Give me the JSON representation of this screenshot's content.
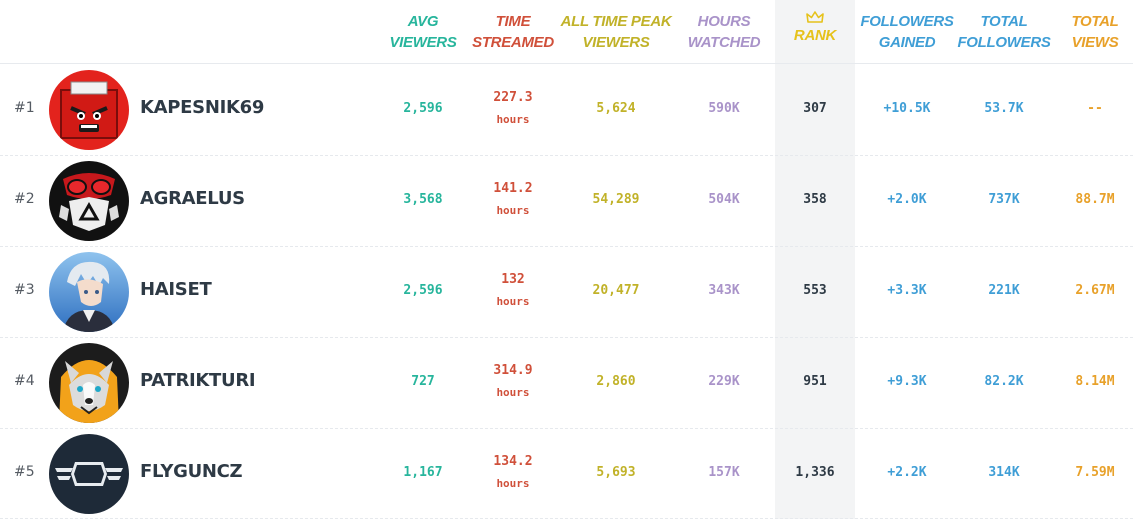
{
  "colors": {
    "avg": "#27b59c",
    "time": "#d0503a",
    "peak": "#c1b229",
    "hours": "#a993c9",
    "rank": "#2e3a45",
    "rank_header": "#e6c21b",
    "followers_gained": "#3f9ed6",
    "total_followers": "#3f9ed6",
    "total_views": "#e8a12a"
  },
  "headers": {
    "avg": [
      "AVG",
      "VIEWERS"
    ],
    "time": [
      "TIME",
      "STREAMED"
    ],
    "peak": [
      "ALL TIME PEAK",
      "VIEWERS"
    ],
    "hours": [
      "HOURS",
      "WATCHED"
    ],
    "rank": "RANK",
    "rank_icon": "crown-icon",
    "followers_gained": [
      "FOLLOWERS",
      "GAINED"
    ],
    "total_followers": [
      "TOTAL",
      "FOLLOWERS"
    ],
    "total_views": [
      "TOTAL",
      "VIEWS"
    ]
  },
  "rows": [
    {
      "pos": "#1",
      "name": "KAPESNIK69",
      "avatar": "red-box-avatar",
      "avg": "2,596",
      "time": "227.3",
      "time_unit": "hours",
      "peak": "5,624",
      "hours": "590K",
      "rank": "307",
      "followers_gained": "+10.5K",
      "total_followers": "53.7K",
      "total_views": "--"
    },
    {
      "pos": "#2",
      "name": "AGRAELUS",
      "avatar": "gas-mask-avatar",
      "avg": "3,568",
      "time": "141.2",
      "time_unit": "hours",
      "peak": "54,289",
      "hours": "504K",
      "rank": "358",
      "followers_gained": "+2.0K",
      "total_followers": "737K",
      "total_views": "88.7M"
    },
    {
      "pos": "#3",
      "name": "HAISET",
      "avatar": "anime-character-avatar",
      "avg": "2,596",
      "time": "132",
      "time_unit": "hours",
      "peak": "20,477",
      "hours": "343K",
      "rank": "553",
      "followers_gained": "+3.3K",
      "total_followers": "221K",
      "total_views": "2.67M"
    },
    {
      "pos": "#4",
      "name": "PATRIKTURI",
      "avatar": "husky-hoodie-avatar",
      "avg": "727",
      "time": "314.9",
      "time_unit": "hours",
      "peak": "2,860",
      "hours": "229K",
      "rank": "951",
      "followers_gained": "+9.3K",
      "total_followers": "82.2K",
      "total_views": "8.14M"
    },
    {
      "pos": "#5",
      "name": "FLYGUNCZ",
      "avatar": "fg-wings-logo-avatar",
      "avg": "1,167",
      "time": "134.2",
      "time_unit": "hours",
      "peak": "5,693",
      "hours": "157K",
      "rank": "1,336",
      "followers_gained": "+2.2K",
      "total_followers": "314K",
      "total_views": "7.59M"
    }
  ]
}
